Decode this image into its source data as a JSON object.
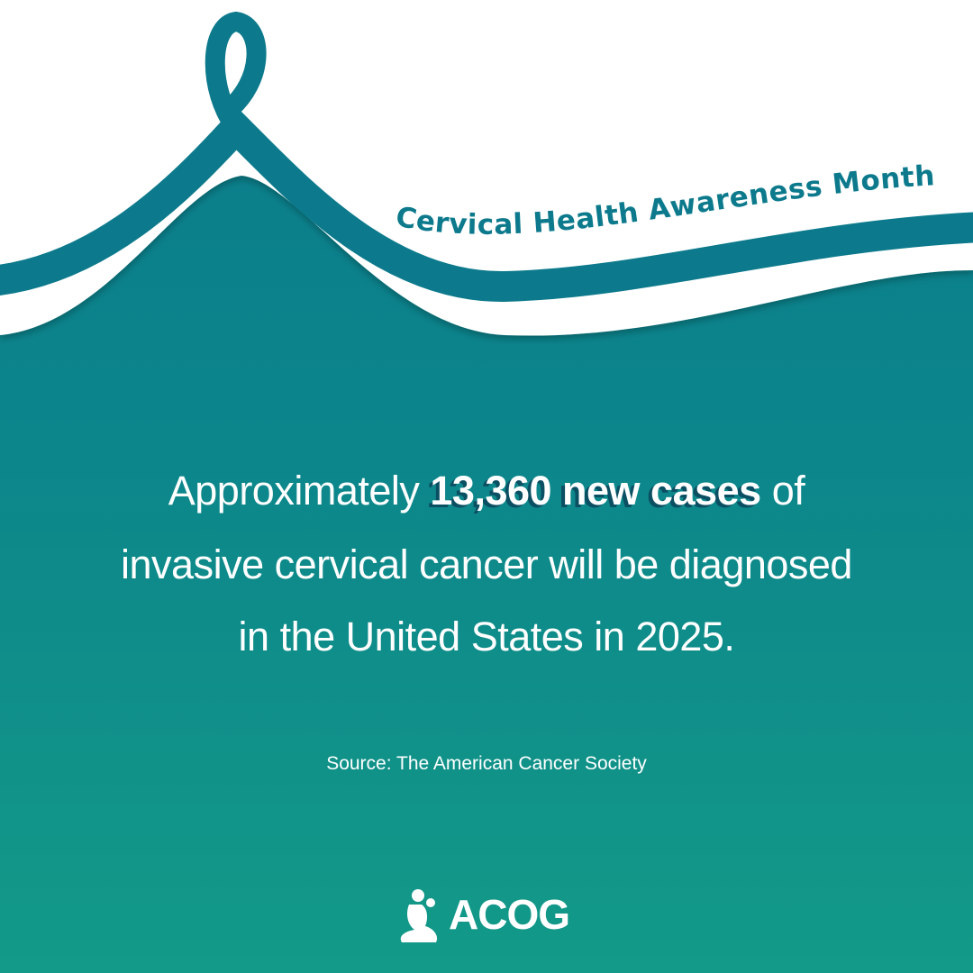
{
  "ribbon_text": "Cervical Health Awareness Month",
  "statement": {
    "line1": [
      "Approximately",
      "13,360 new cases",
      "of"
    ],
    "line2": "invasive cervical cancer will be diagnosed",
    "line3": "in the United States in 2025."
  },
  "source": "Source: The American Cancer Society",
  "logo": "ACOG"
}
